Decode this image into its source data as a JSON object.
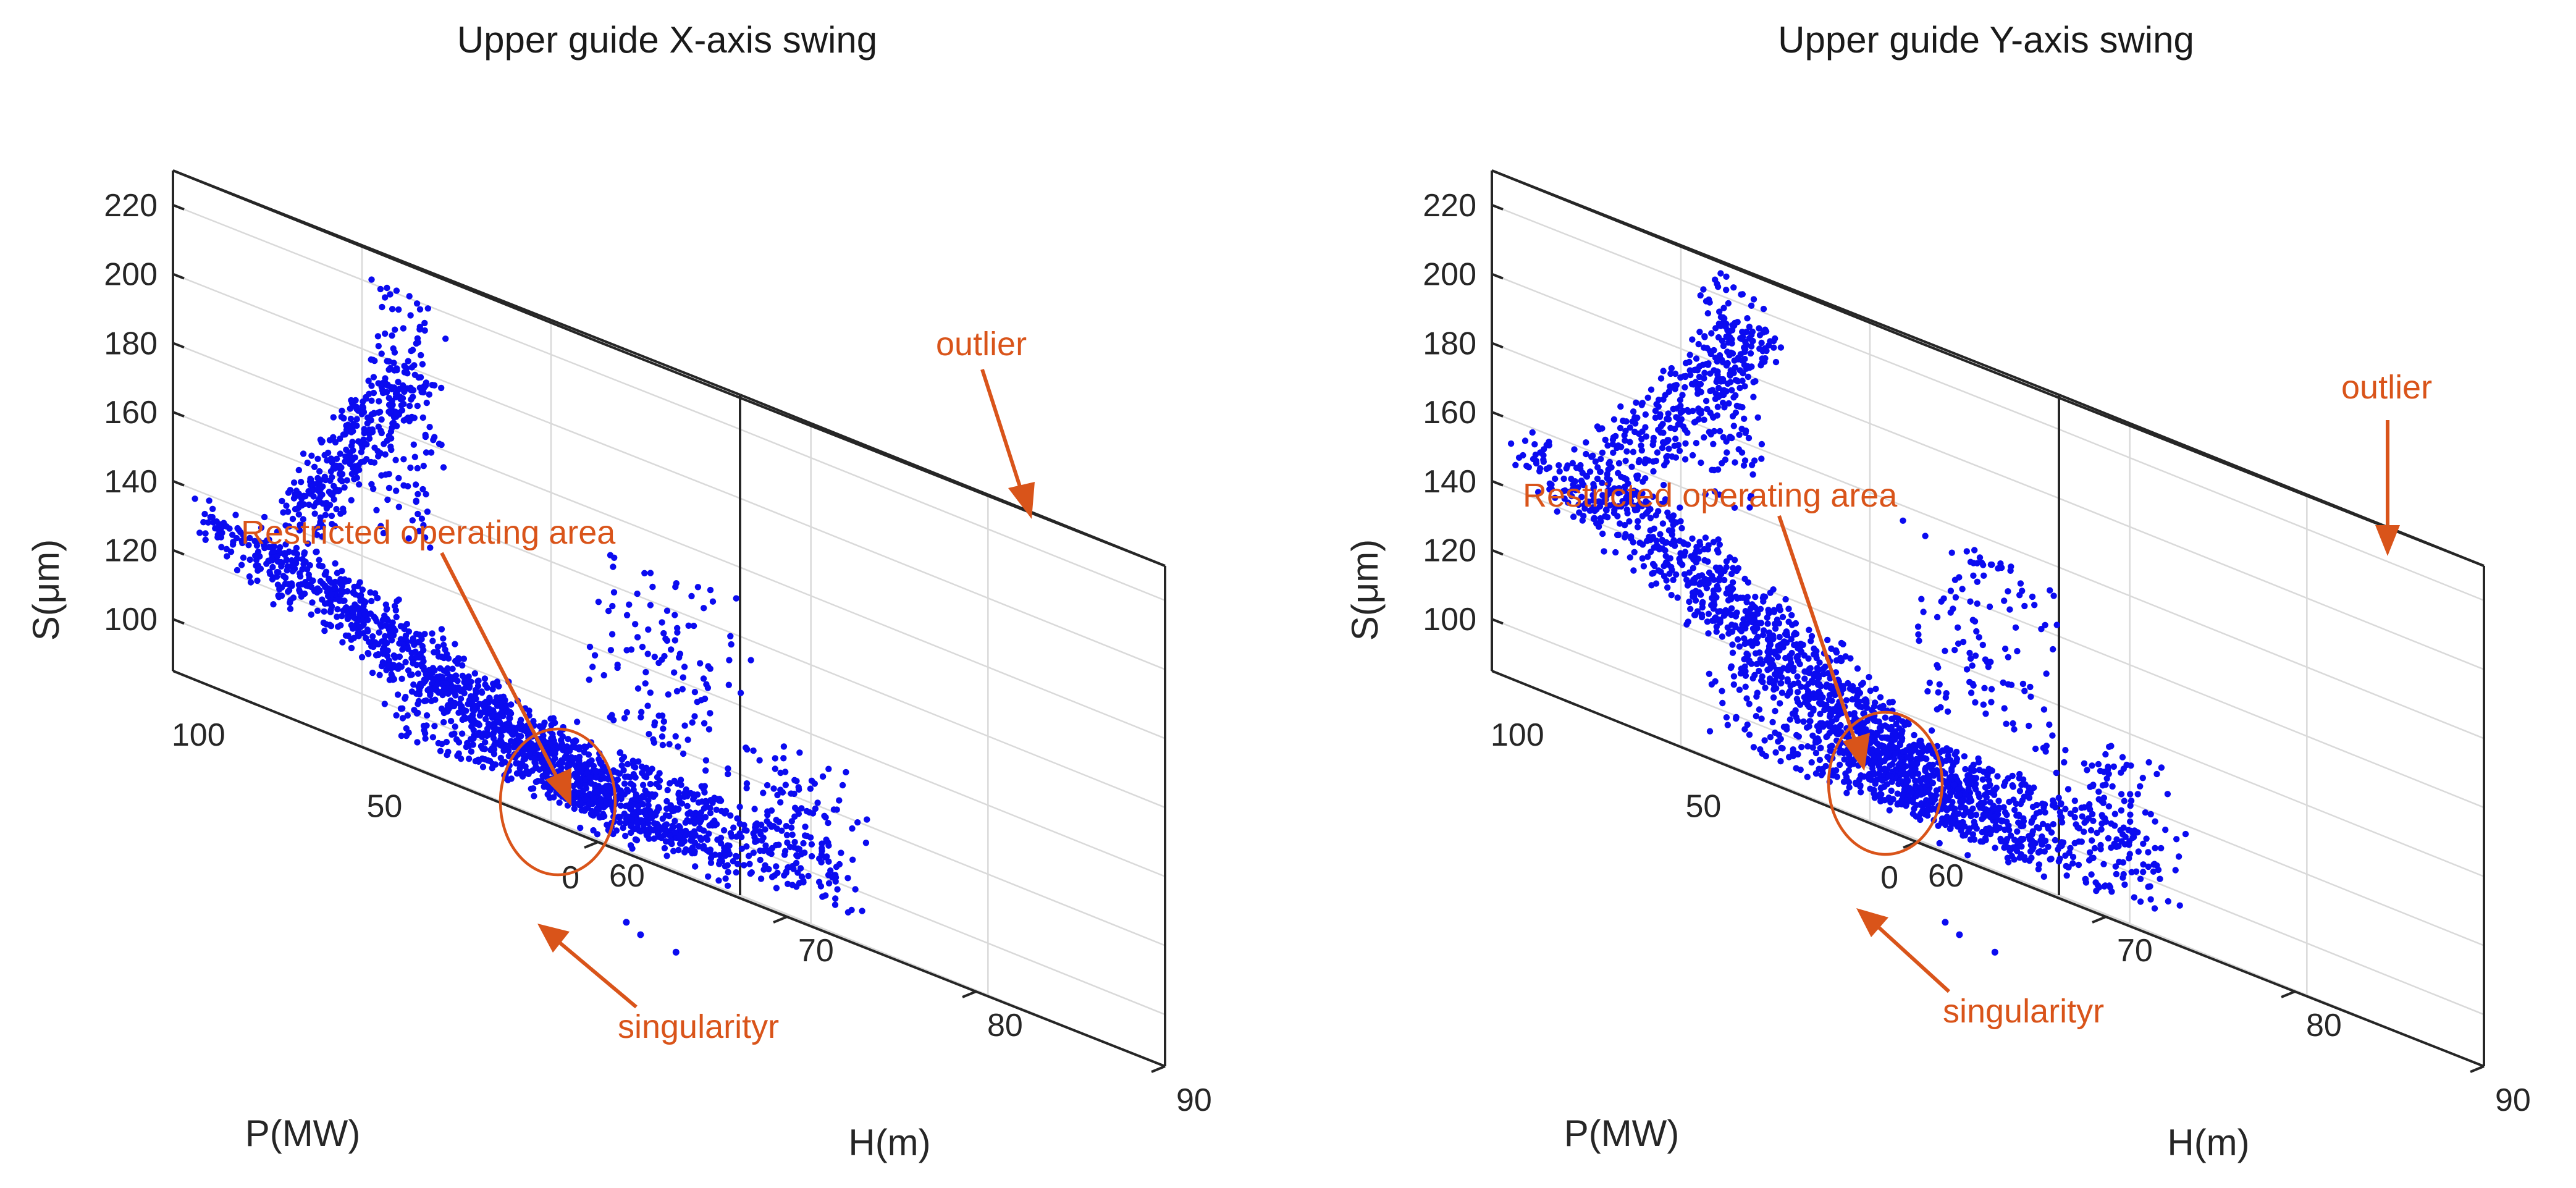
{
  "chart_data": [
    {
      "type": "scatter",
      "title": "Upper guide X-axis swing",
      "xlabel": "P(MW)",
      "ylabel": "H(m)",
      "zlabel": "S(μm)",
      "xlim": [
        0,
        120
      ],
      "ylim": [
        60,
        90
      ],
      "zlim": [
        85,
        230
      ],
      "x_ticks": [
        0,
        50,
        100
      ],
      "y_ticks": [
        60,
        70,
        80,
        90
      ],
      "z_ticks": [
        100,
        120,
        140,
        160,
        180,
        200,
        220
      ],
      "grid": true,
      "marker_color": "#0b0bf0",
      "point_clusters": [
        {
          "name": "main band",
          "P": [
            2,
            118
          ],
          "H": [
            60,
            68
          ],
          "S": [
            92,
            140
          ],
          "count": 2400
        },
        {
          "name": "rising arm",
          "P": [
            105,
            118
          ],
          "H": [
            65,
            71
          ],
          "S": [
            140,
            200
          ],
          "count": 700
        },
        {
          "name": "peak column",
          "P": [
            112,
            118
          ],
          "H": [
            70,
            73
          ],
          "S": [
            150,
            222
          ],
          "count": 260
        },
        {
          "name": "lower band",
          "P": [
            20,
            75
          ],
          "H": [
            62,
            78
          ],
          "S": [
            92,
            112
          ],
          "count": 1600
        },
        {
          "name": "mid column",
          "P": [
            40,
            60
          ],
          "H": [
            78,
            82
          ],
          "S": [
            95,
            135
          ],
          "count": 200
        },
        {
          "name": "outlier column",
          "P": [
            95,
            118
          ],
          "H": [
            81,
            86
          ],
          "S": [
            118,
            170
          ],
          "count": 260
        }
      ],
      "annotations": [
        {
          "text": "outlier",
          "target": "outlier column"
        },
        {
          "text": "Restricted operating area",
          "target": "gap between main band and lower band"
        },
        {
          "text": "singularityr",
          "target": "isolated low points"
        }
      ],
      "annotation_color": "#d9541a"
    },
    {
      "type": "scatter",
      "title": "Upper guide Y-axis swing",
      "xlabel": "P(MW)",
      "ylabel": "H(m)",
      "zlabel": "S(μm)",
      "xlim": [
        0,
        120
      ],
      "ylim": [
        60,
        90
      ],
      "zlim": [
        85,
        230
      ],
      "x_ticks": [
        0,
        50,
        100
      ],
      "y_ticks": [
        60,
        70,
        80,
        90
      ],
      "z_ticks": [
        100,
        120,
        140,
        160,
        180,
        200,
        220
      ],
      "grid": true,
      "marker_color": "#0b0bf0",
      "point_clusters": [
        {
          "name": "main band",
          "P": [
            2,
            118
          ],
          "H": [
            60,
            68
          ],
          "S": [
            95,
            165
          ],
          "count": 2400
        },
        {
          "name": "rising arm",
          "P": [
            100,
            118
          ],
          "H": [
            64,
            72
          ],
          "S": [
            150,
            215
          ],
          "count": 700
        },
        {
          "name": "peak column",
          "P": [
            112,
            118
          ],
          "H": [
            70,
            73
          ],
          "S": [
            160,
            228
          ],
          "count": 260
        },
        {
          "name": "lower band",
          "P": [
            20,
            75
          ],
          "H": [
            62,
            78
          ],
          "S": [
            92,
            115
          ],
          "count": 1600
        },
        {
          "name": "mid column",
          "P": [
            40,
            60
          ],
          "H": [
            78,
            82
          ],
          "S": [
            100,
            135
          ],
          "count": 200
        },
        {
          "name": "outlier column",
          "P": [
            95,
            118
          ],
          "H": [
            81,
            86
          ],
          "S": [
            125,
            175
          ],
          "count": 260
        }
      ],
      "annotations": [
        {
          "text": "outlier",
          "target": "outlier column"
        },
        {
          "text": "Restricted operating area",
          "target": "gap between main band and lower band"
        },
        {
          "text": "singularityr",
          "target": "isolated low points"
        }
      ],
      "annotation_color": "#d9541a"
    }
  ]
}
